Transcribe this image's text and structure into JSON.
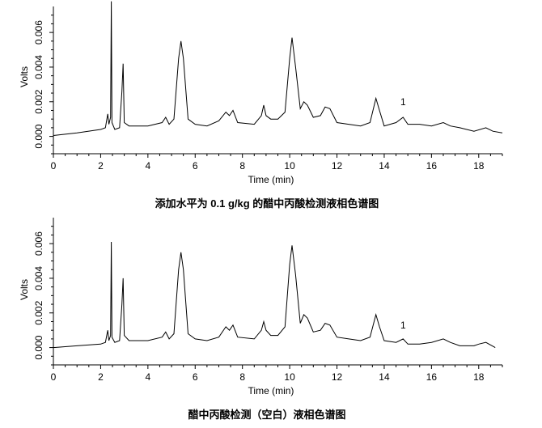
{
  "chart_data": [
    {
      "type": "line",
      "title": "添加水平为 0.1 g/kg 的醋中丙酸检测液相色谱图",
      "xlabel": "Time (min)",
      "ylabel": "Volts",
      "xlim": [
        0,
        19
      ],
      "ylim": [
        -0.001,
        0.0075
      ],
      "x_ticks": [
        0,
        2,
        4,
        6,
        8,
        10,
        12,
        14,
        16,
        18
      ],
      "y_ticks": [
        0.0,
        0.002,
        0.004,
        0.006
      ],
      "x_tick_labels": [
        "0",
        "2",
        "4",
        "6",
        "8",
        "10",
        "12",
        "14",
        "16",
        "18"
      ],
      "y_tick_labels": [
        "0.000",
        "0.002",
        "0.004",
        "0.006"
      ],
      "annotations": [
        {
          "text": "1",
          "x": 14.8,
          "y": 0.0018
        }
      ],
      "grid": false,
      "series": [
        {
          "points": [
            [
              0.0,
              5e-05
            ],
            [
              1.0,
              0.0002
            ],
            [
              2.0,
              0.0004
            ],
            [
              2.2,
              0.0005
            ],
            [
              2.3,
              0.0013
            ],
            [
              2.35,
              0.0007
            ],
            [
              2.42,
              0.0011
            ],
            [
              2.45,
              0.0078
            ],
            [
              2.48,
              0.0008
            ],
            [
              2.6,
              0.0004
            ],
            [
              2.8,
              0.0005
            ],
            [
              2.9,
              0.0026
            ],
            [
              2.95,
              0.0042
            ],
            [
              3.0,
              0.0008
            ],
            [
              3.2,
              0.0006
            ],
            [
              4.0,
              0.0006
            ],
            [
              4.6,
              0.0008
            ],
            [
              4.75,
              0.0011
            ],
            [
              4.9,
              0.0007
            ],
            [
              5.1,
              0.001
            ],
            [
              5.3,
              0.0045
            ],
            [
              5.4,
              0.0055
            ],
            [
              5.5,
              0.0045
            ],
            [
              5.7,
              0.001
            ],
            [
              6.0,
              0.0007
            ],
            [
              6.5,
              0.0006
            ],
            [
              7.0,
              0.0009
            ],
            [
              7.3,
              0.0014
            ],
            [
              7.45,
              0.0012
            ],
            [
              7.6,
              0.0015
            ],
            [
              7.8,
              0.0008
            ],
            [
              8.5,
              0.0007
            ],
            [
              8.8,
              0.0012
            ],
            [
              8.9,
              0.0018
            ],
            [
              9.0,
              0.0012
            ],
            [
              9.2,
              0.001
            ],
            [
              9.5,
              0.001
            ],
            [
              9.8,
              0.0014
            ],
            [
              10.0,
              0.0045
            ],
            [
              10.1,
              0.0057
            ],
            [
              10.25,
              0.004
            ],
            [
              10.45,
              0.0016
            ],
            [
              10.6,
              0.002
            ],
            [
              10.75,
              0.0018
            ],
            [
              11.0,
              0.0011
            ],
            [
              11.3,
              0.0012
            ],
            [
              11.5,
              0.0017
            ],
            [
              11.7,
              0.0016
            ],
            [
              12.0,
              0.0008
            ],
            [
              12.5,
              0.0007
            ],
            [
              13.0,
              0.0006
            ],
            [
              13.4,
              0.0008
            ],
            [
              13.65,
              0.0022
            ],
            [
              13.8,
              0.0015
            ],
            [
              14.0,
              0.0006
            ],
            [
              14.5,
              0.0008
            ],
            [
              14.8,
              0.0011
            ],
            [
              15.0,
              0.0007
            ],
            [
              15.5,
              0.0007
            ],
            [
              16.0,
              0.0006
            ],
            [
              16.5,
              0.0008
            ],
            [
              16.8,
              0.0006
            ],
            [
              17.2,
              0.0005
            ],
            [
              17.8,
              0.0003
            ],
            [
              18.3,
              0.0005
            ],
            [
              18.6,
              0.0003
            ],
            [
              19.0,
              0.0002
            ]
          ]
        }
      ]
    },
    {
      "type": "line",
      "title": "醋中丙酸检测（空白）液相色谱图",
      "xlabel": "Time (min)",
      "ylabel": "Volts",
      "xlim": [
        0,
        19
      ],
      "ylim": [
        -0.001,
        0.0075
      ],
      "x_ticks": [
        0,
        2,
        4,
        6,
        8,
        10,
        12,
        14,
        16,
        18
      ],
      "y_ticks": [
        0.0,
        0.002,
        0.004,
        0.006
      ],
      "x_tick_labels": [
        "0",
        "2",
        "4",
        "6",
        "8",
        "10",
        "12",
        "14",
        "16",
        "18"
      ],
      "y_tick_labels": [
        "0.000",
        "0.002",
        "0.004",
        "0.006"
      ],
      "annotations": [
        {
          "text": "1",
          "x": 14.8,
          "y": 0.0011
        }
      ],
      "grid": false,
      "series": [
        {
          "points": [
            [
              0.0,
              0.0
            ],
            [
              1.0,
              0.0001
            ],
            [
              2.0,
              0.0002
            ],
            [
              2.2,
              0.0003
            ],
            [
              2.3,
              0.001
            ],
            [
              2.35,
              0.0004
            ],
            [
              2.42,
              0.0007
            ],
            [
              2.45,
              0.0061
            ],
            [
              2.48,
              0.0006
            ],
            [
              2.6,
              0.0003
            ],
            [
              2.8,
              0.0004
            ],
            [
              2.9,
              0.0025
            ],
            [
              2.95,
              0.004
            ],
            [
              3.0,
              0.0007
            ],
            [
              3.2,
              0.0004
            ],
            [
              4.0,
              0.0004
            ],
            [
              4.6,
              0.0006
            ],
            [
              4.75,
              0.0009
            ],
            [
              4.9,
              0.0005
            ],
            [
              5.1,
              0.0008
            ],
            [
              5.3,
              0.0045
            ],
            [
              5.4,
              0.0055
            ],
            [
              5.5,
              0.0045
            ],
            [
              5.7,
              0.0008
            ],
            [
              6.0,
              0.0005
            ],
            [
              6.5,
              0.0004
            ],
            [
              7.0,
              0.0006
            ],
            [
              7.3,
              0.0012
            ],
            [
              7.45,
              0.001
            ],
            [
              7.6,
              0.0013
            ],
            [
              7.8,
              0.0006
            ],
            [
              8.5,
              0.0005
            ],
            [
              8.8,
              0.001
            ],
            [
              8.9,
              0.0015
            ],
            [
              9.0,
              0.001
            ],
            [
              9.2,
              0.0007
            ],
            [
              9.5,
              0.0007
            ],
            [
              9.8,
              0.0012
            ],
            [
              10.0,
              0.0048
            ],
            [
              10.1,
              0.0059
            ],
            [
              10.25,
              0.0042
            ],
            [
              10.45,
              0.0014
            ],
            [
              10.6,
              0.0019
            ],
            [
              10.75,
              0.0017
            ],
            [
              11.0,
              0.0009
            ],
            [
              11.3,
              0.001
            ],
            [
              11.5,
              0.0014
            ],
            [
              11.7,
              0.0013
            ],
            [
              12.0,
              0.0006
            ],
            [
              12.5,
              0.0005
            ],
            [
              13.0,
              0.0004
            ],
            [
              13.4,
              0.0006
            ],
            [
              13.65,
              0.0019
            ],
            [
              13.8,
              0.0012
            ],
            [
              14.0,
              0.0004
            ],
            [
              14.5,
              0.0003
            ],
            [
              14.8,
              0.0005
            ],
            [
              15.0,
              0.0002
            ],
            [
              15.5,
              0.0002
            ],
            [
              16.0,
              0.0003
            ],
            [
              16.5,
              0.0005
            ],
            [
              16.8,
              0.0003
            ],
            [
              17.2,
              0.0001
            ],
            [
              17.8,
              0.0001
            ],
            [
              18.0,
              0.0002
            ],
            [
              18.3,
              0.0003
            ],
            [
              18.7,
              0.0
            ]
          ]
        }
      ]
    }
  ],
  "colors": {
    "line": "#000000",
    "axis": "#000000",
    "background": "#ffffff"
  }
}
